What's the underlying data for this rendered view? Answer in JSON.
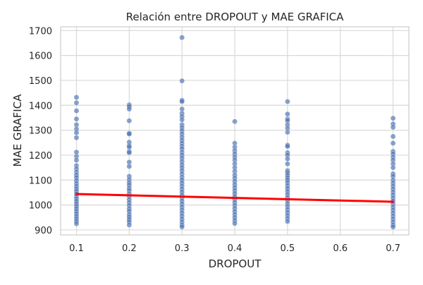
{
  "chart_data": {
    "type": "scatter",
    "title": "Relación entre DROPOUT y MAE GRAFICA",
    "xlabel": "DROPOUT",
    "ylabel": "MAE GRAFICA",
    "xlim": [
      0.07,
      0.73
    ],
    "ylim": [
      880,
      1715
    ],
    "xticks": [
      0.1,
      0.2,
      0.3,
      0.4,
      0.5,
      0.6,
      0.7
    ],
    "xtick_labels": [
      "0.1",
      "0.2",
      "0.3",
      "0.4",
      "0.5",
      "0.6",
      "0.7"
    ],
    "yticks": [
      900,
      1000,
      1100,
      1200,
      1300,
      1400,
      1500,
      1600,
      1700
    ],
    "ytick_labels": [
      "900",
      "1000",
      "1100",
      "1200",
      "1300",
      "1400",
      "1500",
      "1600",
      "1700"
    ],
    "grid": true,
    "point_color": "#4c72b0",
    "regression_color": "#ff0000",
    "regression_line": {
      "x": [
        0.1,
        0.7
      ],
      "y": [
        1044,
        1013
      ]
    },
    "series": [
      {
        "points": [
          [
            0.1,
            1432
          ],
          [
            0.1,
            1410
          ],
          [
            0.1,
            1378
          ],
          [
            0.1,
            1345
          ],
          [
            0.1,
            1322
          ],
          [
            0.1,
            1305
          ],
          [
            0.1,
            1290
          ],
          [
            0.1,
            1270
          ],
          [
            0.1,
            1212
          ],
          [
            0.1,
            1195
          ],
          [
            0.1,
            1180
          ],
          [
            0.1,
            1158
          ],
          [
            0.1,
            1145
          ],
          [
            0.1,
            1132
          ],
          [
            0.1,
            1120
          ],
          [
            0.1,
            1110
          ],
          [
            0.1,
            1098
          ],
          [
            0.1,
            1086
          ],
          [
            0.1,
            1075
          ],
          [
            0.1,
            1065
          ],
          [
            0.1,
            1055
          ],
          [
            0.1,
            1045
          ],
          [
            0.1,
            1035
          ],
          [
            0.1,
            1025
          ],
          [
            0.1,
            1015
          ],
          [
            0.1,
            1005
          ],
          [
            0.1,
            995
          ],
          [
            0.1,
            985
          ],
          [
            0.1,
            975
          ],
          [
            0.1,
            965
          ],
          [
            0.1,
            955
          ],
          [
            0.1,
            945
          ],
          [
            0.1,
            935
          ],
          [
            0.1,
            925
          ],
          [
            0.2,
            1402
          ],
          [
            0.2,
            1395
          ],
          [
            0.2,
            1385
          ],
          [
            0.2,
            1338
          ],
          [
            0.2,
            1288
          ],
          [
            0.2,
            1285
          ],
          [
            0.2,
            1252
          ],
          [
            0.2,
            1238
          ],
          [
            0.2,
            1232
          ],
          [
            0.2,
            1215
          ],
          [
            0.2,
            1210
          ],
          [
            0.2,
            1172
          ],
          [
            0.2,
            1155
          ],
          [
            0.2,
            1115
          ],
          [
            0.2,
            1102
          ],
          [
            0.2,
            1090
          ],
          [
            0.2,
            1080
          ],
          [
            0.2,
            1068
          ],
          [
            0.2,
            1058
          ],
          [
            0.2,
            1045
          ],
          [
            0.2,
            1035
          ],
          [
            0.2,
            1022
          ],
          [
            0.2,
            1010
          ],
          [
            0.2,
            998
          ],
          [
            0.2,
            985
          ],
          [
            0.2,
            975
          ],
          [
            0.2,
            962
          ],
          [
            0.2,
            952
          ],
          [
            0.2,
            942
          ],
          [
            0.2,
            932
          ],
          [
            0.2,
            920
          ],
          [
            0.3,
            1672
          ],
          [
            0.3,
            1498
          ],
          [
            0.3,
            1420
          ],
          [
            0.3,
            1415
          ],
          [
            0.3,
            1385
          ],
          [
            0.3,
            1368
          ],
          [
            0.3,
            1355
          ],
          [
            0.3,
            1342
          ],
          [
            0.3,
            1322
          ],
          [
            0.3,
            1310
          ],
          [
            0.3,
            1298
          ],
          [
            0.3,
            1285
          ],
          [
            0.3,
            1272
          ],
          [
            0.3,
            1260
          ],
          [
            0.3,
            1248
          ],
          [
            0.3,
            1236
          ],
          [
            0.3,
            1225
          ],
          [
            0.3,
            1212
          ],
          [
            0.3,
            1200
          ],
          [
            0.3,
            1188
          ],
          [
            0.3,
            1175
          ],
          [
            0.3,
            1162
          ],
          [
            0.3,
            1150
          ],
          [
            0.3,
            1138
          ],
          [
            0.3,
            1125
          ],
          [
            0.3,
            1112
          ],
          [
            0.3,
            1100
          ],
          [
            0.3,
            1088
          ],
          [
            0.3,
            1076
          ],
          [
            0.3,
            1064
          ],
          [
            0.3,
            1052
          ],
          [
            0.3,
            1040
          ],
          [
            0.3,
            1028
          ],
          [
            0.3,
            1016
          ],
          [
            0.3,
            1004
          ],
          [
            0.3,
            992
          ],
          [
            0.3,
            980
          ],
          [
            0.3,
            968
          ],
          [
            0.3,
            956
          ],
          [
            0.3,
            944
          ],
          [
            0.3,
            932
          ],
          [
            0.3,
            920
          ],
          [
            0.3,
            912
          ],
          [
            0.4,
            1335
          ],
          [
            0.4,
            1248
          ],
          [
            0.4,
            1232
          ],
          [
            0.4,
            1218
          ],
          [
            0.4,
            1205
          ],
          [
            0.4,
            1192
          ],
          [
            0.4,
            1180
          ],
          [
            0.4,
            1165
          ],
          [
            0.4,
            1150
          ],
          [
            0.4,
            1135
          ],
          [
            0.4,
            1120
          ],
          [
            0.4,
            1108
          ],
          [
            0.4,
            1095
          ],
          [
            0.4,
            1082
          ],
          [
            0.4,
            1070
          ],
          [
            0.4,
            1058
          ],
          [
            0.4,
            1046
          ],
          [
            0.4,
            1034
          ],
          [
            0.4,
            1022
          ],
          [
            0.4,
            1010
          ],
          [
            0.4,
            998
          ],
          [
            0.4,
            986
          ],
          [
            0.4,
            974
          ],
          [
            0.4,
            962
          ],
          [
            0.4,
            950
          ],
          [
            0.4,
            938
          ],
          [
            0.4,
            926
          ],
          [
            0.5,
            1415
          ],
          [
            0.5,
            1365
          ],
          [
            0.5,
            1345
          ],
          [
            0.5,
            1338
          ],
          [
            0.5,
            1322
          ],
          [
            0.5,
            1308
          ],
          [
            0.5,
            1292
          ],
          [
            0.5,
            1240
          ],
          [
            0.5,
            1235
          ],
          [
            0.5,
            1210
          ],
          [
            0.5,
            1200
          ],
          [
            0.5,
            1185
          ],
          [
            0.5,
            1165
          ],
          [
            0.5,
            1138
          ],
          [
            0.5,
            1130
          ],
          [
            0.5,
            1120
          ],
          [
            0.5,
            1110
          ],
          [
            0.5,
            1100
          ],
          [
            0.5,
            1090
          ],
          [
            0.5,
            1078
          ],
          [
            0.5,
            1066
          ],
          [
            0.5,
            1054
          ],
          [
            0.5,
            1042
          ],
          [
            0.5,
            1030
          ],
          [
            0.5,
            1018
          ],
          [
            0.5,
            1006
          ],
          [
            0.5,
            994
          ],
          [
            0.5,
            982
          ],
          [
            0.5,
            970
          ],
          [
            0.5,
            958
          ],
          [
            0.5,
            946
          ],
          [
            0.5,
            934
          ],
          [
            0.7,
            1348
          ],
          [
            0.7,
            1325
          ],
          [
            0.7,
            1312
          ],
          [
            0.7,
            1275
          ],
          [
            0.7,
            1248
          ],
          [
            0.7,
            1215
          ],
          [
            0.7,
            1205
          ],
          [
            0.7,
            1192
          ],
          [
            0.7,
            1180
          ],
          [
            0.7,
            1165
          ],
          [
            0.7,
            1150
          ],
          [
            0.7,
            1125
          ],
          [
            0.7,
            1115
          ],
          [
            0.7,
            1100
          ],
          [
            0.7,
            1088
          ],
          [
            0.7,
            1076
          ],
          [
            0.7,
            1064
          ],
          [
            0.7,
            1052
          ],
          [
            0.7,
            1040
          ],
          [
            0.7,
            1028
          ],
          [
            0.7,
            1016
          ],
          [
            0.7,
            1004
          ],
          [
            0.7,
            992
          ],
          [
            0.7,
            980
          ],
          [
            0.7,
            968
          ],
          [
            0.7,
            956
          ],
          [
            0.7,
            944
          ],
          [
            0.7,
            932
          ],
          [
            0.7,
            920
          ],
          [
            0.7,
            912
          ]
        ]
      }
    ]
  }
}
